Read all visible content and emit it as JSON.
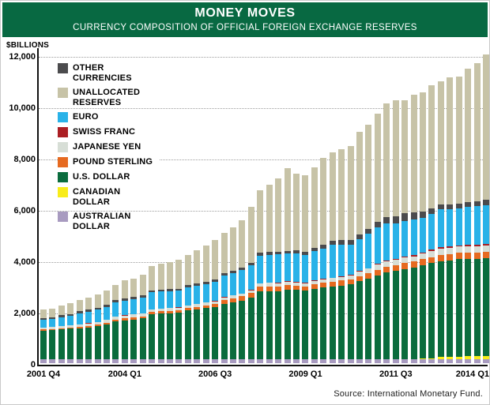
{
  "header": {
    "title": "MONEY MOVES",
    "subtitle": "CURRENCY COMPOSITION OF OFFICIAL FOREIGN EXCHANGE RESERVES",
    "banner_color": "#086942"
  },
  "source": "Source: International Monetary Fund.",
  "y_axis": {
    "label": "$BILLIONS",
    "ticks": [
      {
        "label": "12,000",
        "value": 12000
      },
      {
        "label": "10,000",
        "value": 10000
      },
      {
        "label": "8,000",
        "value": 8000
      },
      {
        "label": "6,000",
        "value": 6000
      },
      {
        "label": "4,000",
        "value": 4000
      },
      {
        "label": "2,000",
        "value": 2000
      },
      {
        "label": "0",
        "value": 0
      }
    ]
  },
  "x_axis": {
    "shown_labels": [
      {
        "label": "2001 Q4",
        "index": 0
      },
      {
        "label": "2004 Q1",
        "index": 9
      },
      {
        "label": "2006 Q3",
        "index": 19
      },
      {
        "label": "2009 Q1",
        "index": 29
      },
      {
        "label": "2011 Q3",
        "index": 39
      },
      {
        "label": "2014 Q1",
        "index": 49
      }
    ]
  },
  "legend": [
    {
      "label": "OTHER CURRENCIES",
      "color": "#4b4b4d"
    },
    {
      "label": "UNALLOCATED RESERVES",
      "color": "#c7c3a7"
    },
    {
      "label": "EURO",
      "color": "#29b2e8"
    },
    {
      "label": "SWISS FRANC",
      "color": "#ab1e23"
    },
    {
      "label": "JAPANESE YEN",
      "color": "#d7ded6"
    },
    {
      "label": "POUND STERLING",
      "color": "#e66a20"
    },
    {
      "label": "U.S. DOLLAR",
      "color": "#0a6c3d"
    },
    {
      "label": "CANADIAN DOLLAR",
      "color": "#f8ec1a"
    },
    {
      "label": "AUSTRALIAN DOLLAR",
      "color": "#a89bc0"
    }
  ],
  "chart_data": {
    "type": "bar",
    "stacked": true,
    "title": "MONEY MOVES",
    "subtitle": "CURRENCY COMPOSITION OF OFFICIAL FOREIGN EXCHANGE RESERVES",
    "ylabel": "$BILLIONS",
    "ylim": [
      0,
      12000
    ],
    "ytick_interval": 2000,
    "grid": "dotted-horizontal",
    "legend_position": "upper-left-inside",
    "units": "billions USD, quarterly",
    "categories": [
      "2001 Q4",
      "2002 Q1",
      "2002 Q2",
      "2002 Q3",
      "2002 Q4",
      "2003 Q1",
      "2003 Q2",
      "2003 Q3",
      "2003 Q4",
      "2004 Q1",
      "2004 Q2",
      "2004 Q3",
      "2004 Q4",
      "2005 Q1",
      "2005 Q2",
      "2005 Q3",
      "2005 Q4",
      "2006 Q1",
      "2006 Q2",
      "2006 Q3",
      "2006 Q4",
      "2007 Q1",
      "2007 Q2",
      "2007 Q3",
      "2007 Q4",
      "2008 Q1",
      "2008 Q2",
      "2008 Q3",
      "2008 Q4",
      "2009 Q1",
      "2009 Q2",
      "2009 Q3",
      "2009 Q4",
      "2010 Q1",
      "2010 Q2",
      "2010 Q3",
      "2010 Q4",
      "2011 Q1",
      "2011 Q2",
      "2011 Q3",
      "2011 Q4",
      "2012 Q1",
      "2012 Q2",
      "2012 Q3",
      "2012 Q4",
      "2013 Q1",
      "2013 Q2",
      "2013 Q3",
      "2013 Q4",
      "2014 Q1"
    ],
    "series": [
      {
        "name": "AUSTRALIAN DOLLAR",
        "color": "#a89bc0",
        "values": [
          150,
          150,
          150,
          150,
          150,
          150,
          150,
          150,
          150,
          150,
          150,
          150,
          150,
          150,
          150,
          150,
          150,
          150,
          150,
          150,
          150,
          150,
          150,
          150,
          150,
          150,
          150,
          150,
          150,
          150,
          150,
          150,
          150,
          150,
          150,
          150,
          150,
          150,
          150,
          150,
          150,
          150,
          150,
          155,
          155,
          160,
          160,
          160,
          160,
          165
        ]
      },
      {
        "name": "CANADIAN DOLLAR",
        "color": "#f8ec1a",
        "values": [
          0,
          0,
          0,
          0,
          0,
          0,
          0,
          0,
          0,
          0,
          0,
          0,
          0,
          0,
          0,
          0,
          0,
          0,
          0,
          0,
          0,
          0,
          0,
          0,
          0,
          0,
          0,
          0,
          0,
          0,
          0,
          0,
          0,
          0,
          0,
          0,
          0,
          0,
          0,
          0,
          0,
          0,
          20,
          40,
          87,
          95,
          100,
          105,
          112,
          115
        ]
      },
      {
        "name": "U.S. DOLLAR",
        "color": "#0a6c3d",
        "values": [
          1122,
          1130,
          1165,
          1190,
          1205,
          1240,
          1290,
          1355,
          1466,
          1510,
          1545,
          1590,
          1751,
          1780,
          1800,
          1820,
          1903,
          1940,
          1990,
          2030,
          2171,
          2230,
          2290,
          2400,
          2642,
          2650,
          2640,
          2700,
          2698,
          2687,
          2750,
          2800,
          2837,
          2880,
          2920,
          3050,
          3144,
          3280,
          3390,
          3450,
          3526,
          3570,
          3640,
          3700,
          3730,
          3760,
          3790,
          3800,
          3806,
          3812
        ]
      },
      {
        "name": "POUND STERLING",
        "color": "#e66a20",
        "values": [
          42,
          45,
          50,
          55,
          66,
          68,
          70,
          73,
          76,
          80,
          83,
          86,
          90,
          93,
          96,
          99,
          102,
          110,
          120,
          132,
          145,
          155,
          165,
          180,
          195,
          200,
          205,
          195,
          169,
          155,
          175,
          185,
          196,
          195,
          195,
          200,
          203,
          210,
          220,
          225,
          229,
          235,
          240,
          243,
          246,
          248,
          247,
          246,
          245,
          249
        ]
      },
      {
        "name": "JAPANESE YEN",
        "color": "#d7ded6",
        "values": [
          79,
          80,
          85,
          88,
          94,
          95,
          100,
          105,
          117,
          120,
          118,
          119,
          102,
          103,
          102,
          101,
          102,
          102,
          102,
          102,
          103,
          106,
          110,
          114,
          120,
          125,
          127,
          130,
          132,
          128,
          130,
          132,
          135,
          140,
          155,
          175,
          190,
          195,
          200,
          200,
          204,
          210,
          220,
          235,
          245,
          246,
          245,
          244,
          243,
          248
        ]
      },
      {
        "name": "SWISS FRANC",
        "color": "#ab1e23",
        "values": [
          5,
          5,
          5,
          5,
          5,
          5,
          5,
          5,
          5,
          5,
          5,
          5,
          5,
          5,
          5,
          5,
          5,
          5,
          5,
          5,
          5,
          5,
          5,
          5,
          5,
          5,
          5,
          30,
          30,
          30,
          30,
          20,
          20,
          20,
          20,
          20,
          20,
          50,
          50,
          50,
          50,
          50,
          50,
          50,
          50,
          50,
          50,
          50,
          50,
          45
        ]
      },
      {
        "name": "EURO",
        "color": "#29b2e8",
        "values": [
          301,
          310,
          345,
          370,
          427,
          450,
          480,
          510,
          559,
          580,
          595,
          615,
          659,
          660,
          650,
          645,
          684,
          700,
          720,
          740,
          831,
          870,
          900,
          960,
          1082,
          1100,
          1110,
          1060,
          1112,
          1066,
          1120,
          1190,
          1280,
          1240,
          1190,
          1250,
          1339,
          1400,
          1430,
          1380,
          1393,
          1380,
          1345,
          1400,
          1474,
          1430,
          1440,
          1480,
          1517,
          1526
        ]
      },
      {
        "name": "OTHER CURRENCIES",
        "color": "#4b4b4d",
        "values": [
          60,
          62,
          64,
          66,
          70,
          72,
          74,
          76,
          78,
          78,
          80,
          80,
          82,
          84,
          84,
          86,
          88,
          88,
          90,
          90,
          92,
          95,
          98,
          102,
          108,
          112,
          115,
          118,
          120,
          125,
          135,
          145,
          155,
          165,
          175,
          185,
          199,
          230,
          260,
          280,
          289,
          295,
          250,
          220,
          200,
          195,
          190,
          185,
          181,
          226
        ]
      },
      {
        "name": "UNALLOCATED RESERVES",
        "color": "#c7c3a7",
        "values": [
          330,
          333,
          381,
          421,
          433,
          463,
          522,
          565,
          607,
          709,
          727,
          807,
          944,
          998,
          1064,
          1135,
          1171,
          1304,
          1422,
          1559,
          1571,
          1688,
          1841,
          2170,
          2437,
          2600,
          2858,
          3210,
          2991,
          2971,
          3154,
          3372,
          3432,
          3544,
          3644,
          3979,
          4034,
          4223,
          4422,
          4506,
          4404,
          4564,
          4633,
          4784,
          4800,
          4952,
          4944,
          5195,
          5395,
          5650
        ]
      }
    ]
  }
}
